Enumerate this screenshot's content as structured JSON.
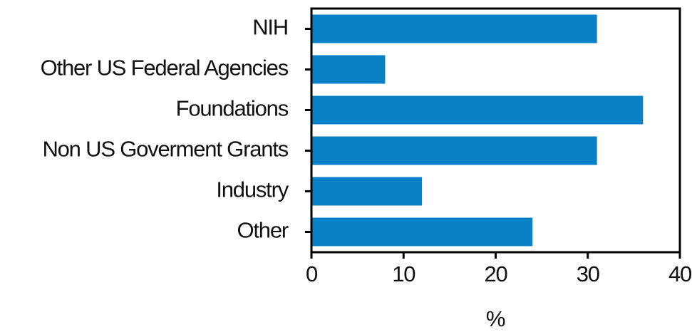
{
  "chart_data": {
    "type": "barh",
    "xlabel": "%",
    "categories": [
      "NIH",
      "Other US Federal Agencies",
      "Foundations",
      "Non US Goverment Grants",
      "Industry",
      "Other"
    ],
    "values": [
      31,
      8,
      36,
      31,
      12,
      24
    ],
    "color": "#0a80c6",
    "xlim": [
      0,
      40
    ],
    "xticks": [
      0,
      10,
      20,
      30,
      40
    ],
    "grid": false
  }
}
